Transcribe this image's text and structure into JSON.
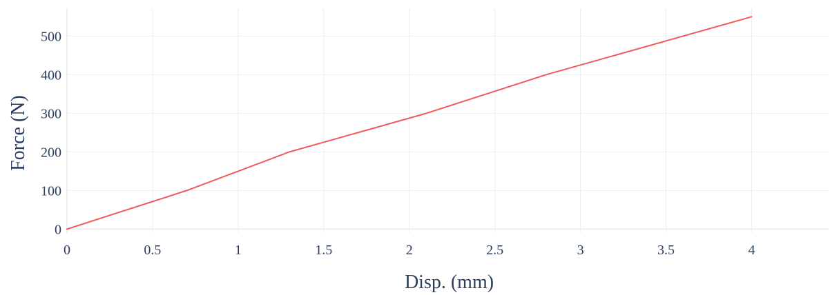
{
  "chart_data": {
    "type": "line",
    "title": "",
    "xlabel": "Disp. (mm)",
    "ylabel": "Force (N)",
    "xlim": [
      0,
      4.45
    ],
    "ylim": [
      -10,
      572
    ],
    "x_ticks": [
      0,
      0.5,
      1,
      1.5,
      2,
      2.5,
      3,
      3.5,
      4
    ],
    "x_tick_labels": [
      "0",
      "0.5",
      "1",
      "1.5",
      "2",
      "2.5",
      "3",
      "3.5",
      "4"
    ],
    "y_ticks": [
      0,
      100,
      200,
      300,
      400,
      500
    ],
    "y_tick_labels": [
      "0",
      "100",
      "200",
      "300",
      "400",
      "500"
    ],
    "grid": true,
    "legend": "none",
    "series": [
      {
        "color": "#EF5A5A",
        "x": [
          0,
          0.7,
          1.3,
          2.1,
          2.8,
          4.0
        ],
        "y": [
          0,
          100,
          200,
          300,
          400,
          550
        ]
      }
    ]
  }
}
